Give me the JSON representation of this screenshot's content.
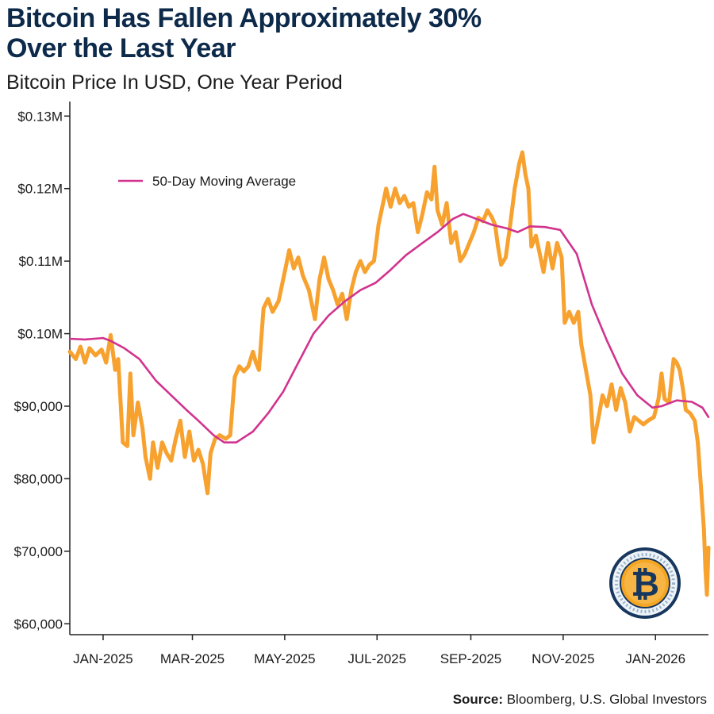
{
  "title": {
    "line1": "Bitcoin Has Fallen Approximately 30%",
    "line2": "Over the Last Year"
  },
  "subtitle": "Bitcoin Price In USD, One Year Period",
  "source": {
    "label": "Source:",
    "text": "Bloomberg, U.S. Global Investors"
  },
  "logo": {
    "icon": "bitcoin-coin-icon",
    "glyph": "₿"
  },
  "colors": {
    "title": "#0d2a4a",
    "price": "#f7a12f",
    "moving_average": "#d1338e",
    "axis": "#222222",
    "coin_gold": "#f5a623",
    "coin_navy": "#17375e"
  },
  "chart_data": {
    "type": "line",
    "title": "Bitcoin Has Fallen Approximately 30% Over the Last Year",
    "subtitle": "Bitcoin Price In USD, One Year Period",
    "xlabel": "",
    "ylabel": "",
    "x_tick_labels": [
      "JAN-2025",
      "MAR-2025",
      "MAY-2025",
      "JUL-2025",
      "SEP-2025",
      "NOV-2025",
      "JAN-2026"
    ],
    "x_tick_dates": [
      "2025-01-01",
      "2025-03-01",
      "2025-05-01",
      "2025-07-01",
      "2025-09-01",
      "2025-11-01",
      "2026-01-01"
    ],
    "xlim": [
      "2024-12-10",
      "2026-02-05"
    ],
    "y_ticks": [
      60000,
      70000,
      80000,
      90000,
      100000,
      110000,
      120000,
      130000
    ],
    "y_tick_labels": [
      "$60,000",
      "$70,000",
      "$80,000",
      "$90,000",
      "$0.10M",
      "$0.11M",
      "$0.12M",
      "$0.13M"
    ],
    "ylim": [
      58500,
      132000
    ],
    "grid": false,
    "legend": {
      "placement": "top-left",
      "entries": [
        "50-Day Moving Average"
      ]
    },
    "series": [
      {
        "key": "price",
        "color": "#f7a12f",
        "points": [
          [
            "2024-12-10",
            97500
          ],
          [
            "2024-12-14",
            96500
          ],
          [
            "2024-12-17",
            98200
          ],
          [
            "2024-12-20",
            96000
          ],
          [
            "2024-12-23",
            98000
          ],
          [
            "2024-12-27",
            97000
          ],
          [
            "2024-12-31",
            97800
          ],
          [
            "2025-01-03",
            96000
          ],
          [
            "2025-01-06",
            99800
          ],
          [
            "2025-01-09",
            95000
          ],
          [
            "2025-01-11",
            96500
          ],
          [
            "2025-01-14",
            85000
          ],
          [
            "2025-01-17",
            84500
          ],
          [
            "2025-01-19",
            94500
          ],
          [
            "2025-01-21",
            86000
          ],
          [
            "2025-01-24",
            90500
          ],
          [
            "2025-01-27",
            87000
          ],
          [
            "2025-01-29",
            83000
          ],
          [
            "2025-02-01",
            80000
          ],
          [
            "2025-02-03",
            85000
          ],
          [
            "2025-02-06",
            81500
          ],
          [
            "2025-02-09",
            85000
          ],
          [
            "2025-02-12",
            83500
          ],
          [
            "2025-02-15",
            82500
          ],
          [
            "2025-02-18",
            85500
          ],
          [
            "2025-02-21",
            88000
          ],
          [
            "2025-02-24",
            83000
          ],
          [
            "2025-02-27",
            86500
          ],
          [
            "2025-03-02",
            82500
          ],
          [
            "2025-03-05",
            84000
          ],
          [
            "2025-03-08",
            82000
          ],
          [
            "2025-03-11",
            78000
          ],
          [
            "2025-03-13",
            83500
          ],
          [
            "2025-03-16",
            85500
          ],
          [
            "2025-03-19",
            86000
          ],
          [
            "2025-03-23",
            85500
          ],
          [
            "2025-03-26",
            86000
          ],
          [
            "2025-03-29",
            94000
          ],
          [
            "2025-04-01",
            95500
          ],
          [
            "2025-04-04",
            94800
          ],
          [
            "2025-04-07",
            95500
          ],
          [
            "2025-04-10",
            97500
          ],
          [
            "2025-04-12",
            96000
          ],
          [
            "2025-04-14",
            95000
          ],
          [
            "2025-04-17",
            103500
          ],
          [
            "2025-04-20",
            104800
          ],
          [
            "2025-04-23",
            103000
          ],
          [
            "2025-04-27",
            104500
          ],
          [
            "2025-05-01",
            108500
          ],
          [
            "2025-05-04",
            111500
          ],
          [
            "2025-05-07",
            109000
          ],
          [
            "2025-05-10",
            110500
          ],
          [
            "2025-05-13",
            108000
          ],
          [
            "2025-05-17",
            106000
          ],
          [
            "2025-05-21",
            102000
          ],
          [
            "2025-05-24",
            107500
          ],
          [
            "2025-05-27",
            110500
          ],
          [
            "2025-05-30",
            107500
          ],
          [
            "2025-06-02",
            106000
          ],
          [
            "2025-06-05",
            104000
          ],
          [
            "2025-06-08",
            105500
          ],
          [
            "2025-06-11",
            102000
          ],
          [
            "2025-06-14",
            106000
          ],
          [
            "2025-06-17",
            108500
          ],
          [
            "2025-06-20",
            110000
          ],
          [
            "2025-06-23",
            108500
          ],
          [
            "2025-06-26",
            109500
          ],
          [
            "2025-06-29",
            110000
          ],
          [
            "2025-07-02",
            115000
          ],
          [
            "2025-07-05",
            118000
          ],
          [
            "2025-07-07",
            120000
          ],
          [
            "2025-07-10",
            117500
          ],
          [
            "2025-07-13",
            120000
          ],
          [
            "2025-07-16",
            118000
          ],
          [
            "2025-07-19",
            119000
          ],
          [
            "2025-07-22",
            117500
          ],
          [
            "2025-07-25",
            118000
          ],
          [
            "2025-07-28",
            114000
          ],
          [
            "2025-07-31",
            116500
          ],
          [
            "2025-08-03",
            119500
          ],
          [
            "2025-08-06",
            118500
          ],
          [
            "2025-08-08",
            123000
          ],
          [
            "2025-08-10",
            117000
          ],
          [
            "2025-08-13",
            115000
          ],
          [
            "2025-08-16",
            118000
          ],
          [
            "2025-08-19",
            112500
          ],
          [
            "2025-08-22",
            114000
          ],
          [
            "2025-08-25",
            110000
          ],
          [
            "2025-08-28",
            111000
          ],
          [
            "2025-08-31",
            112500
          ],
          [
            "2025-09-03",
            114000
          ],
          [
            "2025-09-06",
            116000
          ],
          [
            "2025-09-09",
            115500
          ],
          [
            "2025-09-12",
            117000
          ],
          [
            "2025-09-15",
            116000
          ],
          [
            "2025-09-17",
            115000
          ],
          [
            "2025-09-19",
            112000
          ],
          [
            "2025-09-21",
            109500
          ],
          [
            "2025-09-24",
            110500
          ],
          [
            "2025-09-27",
            115000
          ],
          [
            "2025-09-30",
            120000
          ],
          [
            "2025-10-03",
            123500
          ],
          [
            "2025-10-05",
            125000
          ],
          [
            "2025-10-07",
            122000
          ],
          [
            "2025-10-09",
            120000
          ],
          [
            "2025-10-11",
            112000
          ],
          [
            "2025-10-14",
            113500
          ],
          [
            "2025-10-16",
            111500
          ],
          [
            "2025-10-19",
            108500
          ],
          [
            "2025-10-22",
            112500
          ],
          [
            "2025-10-25",
            109000
          ],
          [
            "2025-10-28",
            112500
          ],
          [
            "2025-10-31",
            110500
          ],
          [
            "2025-11-02",
            101500
          ],
          [
            "2025-11-05",
            103000
          ],
          [
            "2025-11-08",
            101500
          ],
          [
            "2025-11-11",
            103000
          ],
          [
            "2025-11-13",
            98500
          ],
          [
            "2025-11-16",
            95000
          ],
          [
            "2025-11-19",
            91500
          ],
          [
            "2025-11-21",
            85000
          ],
          [
            "2025-11-24",
            88000
          ],
          [
            "2025-11-27",
            91500
          ],
          [
            "2025-11-30",
            90000
          ],
          [
            "2025-12-03",
            93000
          ],
          [
            "2025-12-06",
            89500
          ],
          [
            "2025-12-09",
            92500
          ],
          [
            "2025-12-12",
            90500
          ],
          [
            "2025-12-15",
            86500
          ],
          [
            "2025-12-18",
            88500
          ],
          [
            "2025-12-21",
            88000
          ],
          [
            "2025-12-24",
            87500
          ],
          [
            "2025-12-27",
            88000
          ],
          [
            "2025-12-31",
            88500
          ],
          [
            "2026-01-03",
            91000
          ],
          [
            "2026-01-05",
            94500
          ],
          [
            "2026-01-07",
            91000
          ],
          [
            "2026-01-10",
            90500
          ],
          [
            "2026-01-13",
            96500
          ],
          [
            "2026-01-15",
            96000
          ],
          [
            "2026-01-17",
            95000
          ],
          [
            "2026-01-19",
            92500
          ],
          [
            "2026-01-21",
            89500
          ],
          [
            "2026-01-24",
            89000
          ],
          [
            "2026-01-27",
            88000
          ],
          [
            "2026-01-29",
            85000
          ],
          [
            "2026-01-31",
            79000
          ],
          [
            "2026-02-02",
            73000
          ],
          [
            "2026-02-03",
            67500
          ],
          [
            "2026-02-04",
            64000
          ],
          [
            "2026-02-05",
            70500
          ]
        ]
      },
      {
        "key": "moving_average",
        "name": "50-Day Moving Average",
        "color": "#d1338e",
        "points": [
          [
            "2024-12-10",
            99300
          ],
          [
            "2024-12-20",
            99200
          ],
          [
            "2025-01-01",
            99400
          ],
          [
            "2025-01-06",
            99000
          ],
          [
            "2025-01-15",
            98000
          ],
          [
            "2025-01-25",
            96500
          ],
          [
            "2025-02-05",
            93500
          ],
          [
            "2025-02-15",
            91500
          ],
          [
            "2025-02-25",
            89500
          ],
          [
            "2025-03-05",
            88000
          ],
          [
            "2025-03-15",
            86000
          ],
          [
            "2025-03-22",
            85000
          ],
          [
            "2025-03-30",
            85000
          ],
          [
            "2025-04-10",
            86500
          ],
          [
            "2025-04-20",
            89000
          ],
          [
            "2025-04-30",
            92000
          ],
          [
            "2025-05-10",
            96000
          ],
          [
            "2025-05-20",
            100000
          ],
          [
            "2025-05-30",
            102500
          ],
          [
            "2025-06-10",
            104500
          ],
          [
            "2025-06-20",
            106000
          ],
          [
            "2025-06-30",
            107000
          ],
          [
            "2025-07-10",
            108800
          ],
          [
            "2025-07-20",
            110800
          ],
          [
            "2025-07-31",
            112500
          ],
          [
            "2025-08-10",
            114000
          ],
          [
            "2025-08-20",
            115800
          ],
          [
            "2025-08-27",
            116500
          ],
          [
            "2025-09-05",
            115800
          ],
          [
            "2025-09-15",
            115000
          ],
          [
            "2025-09-25",
            114500
          ],
          [
            "2025-10-02",
            114000
          ],
          [
            "2025-10-10",
            114800
          ],
          [
            "2025-10-20",
            114700
          ],
          [
            "2025-10-30",
            114300
          ],
          [
            "2025-11-10",
            111000
          ],
          [
            "2025-11-20",
            104000
          ],
          [
            "2025-11-30",
            99000
          ],
          [
            "2025-12-10",
            94500
          ],
          [
            "2025-12-20",
            91500
          ],
          [
            "2025-12-30",
            89800
          ],
          [
            "2026-01-05",
            90000
          ],
          [
            "2026-01-15",
            90800
          ],
          [
            "2026-01-25",
            90600
          ],
          [
            "2026-02-01",
            89800
          ],
          [
            "2026-02-05",
            88500
          ]
        ]
      }
    ]
  }
}
